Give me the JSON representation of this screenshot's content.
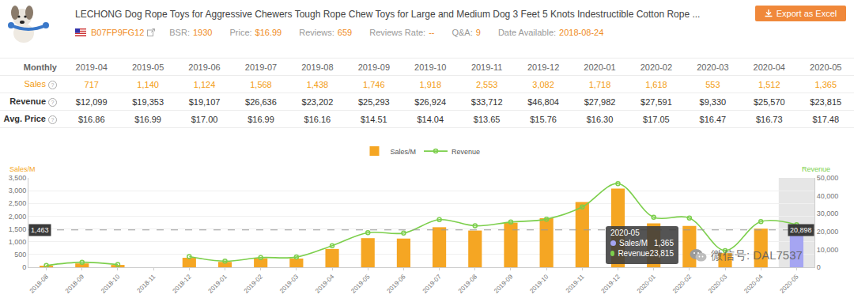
{
  "header": {
    "title": "LECHONG Dog Rope Toys for Aggressive Chewers Tough Rope Chew Toys for Large and Medium Dog 3 Feet 5 Knots Indestructible Cotton Rope ...",
    "asin": "B07FP9FG12",
    "stats": [
      {
        "label": "BSR:",
        "value": "1930"
      },
      {
        "label": "Price:",
        "value": "$16.99"
      },
      {
        "label": "Reviews:",
        "value": "659"
      },
      {
        "label": "Reviews Rate:",
        "value": "--"
      },
      {
        "label": "Q&A:",
        "value": "9"
      },
      {
        "label": "Date Available:",
        "value": "2018-08-24"
      }
    ],
    "export_button": "Export as Excel"
  },
  "table": {
    "header": "Monthly",
    "help_mark": "?",
    "columns": [
      "2019-04",
      "2019-05",
      "2019-06",
      "2019-07",
      "2019-08",
      "2019-09",
      "2019-10",
      "2019-11",
      "2019-12",
      "2020-01",
      "2020-02",
      "2020-03",
      "2020-04",
      "2020-05"
    ],
    "rows": [
      {
        "label": "Sales",
        "help": true,
        "values": [
          "717",
          "1,140",
          "1,124",
          "1,568",
          "1,438",
          "1,746",
          "1,918",
          "2,553",
          "3,082",
          "1,718",
          "1,618",
          "553",
          "1,512",
          "1,365"
        ]
      },
      {
        "label": "Revenue",
        "help": true,
        "values": [
          "$12,099",
          "$19,353",
          "$19,107",
          "$26,636",
          "$23,202",
          "$25,293",
          "$26,924",
          "$33,712",
          "$46,804",
          "$27,982",
          "$27,591",
          "$9,330",
          "$25,570",
          "$23,815"
        ]
      },
      {
        "label": "Avg. Price",
        "help": true,
        "values": [
          "$16.86",
          "$16.99",
          "$17.00",
          "$16.99",
          "$16.16",
          "$14.51",
          "$14.04",
          "$13.65",
          "$15.76",
          "$16.30",
          "$17.05",
          "$16.47",
          "$16.73",
          "$17.48"
        ]
      }
    ]
  },
  "chart_data": {
    "type": "bar",
    "categories": [
      "2018-08",
      "2018-09",
      "2018-10",
      "2018-11",
      "2018-12",
      "2019-01",
      "2019-02",
      "2019-03",
      "2019-04",
      "2019-05",
      "2019-06",
      "2019-07",
      "2019-08",
      "2019-09",
      "2019-10",
      "2019-11",
      "2019-12",
      "2020-01",
      "2020-02",
      "2020-03",
      "2020-04",
      "2020-05"
    ],
    "series": [
      {
        "name": "Sales/M",
        "type": "bar",
        "color": "#f5a623",
        "colors": [
          "#f5a623",
          "#f5a623",
          "#f5a623",
          "#f5a623",
          "#f5a623",
          "#f5a623",
          "#f5a623",
          "#f5a623",
          "#f5a623",
          "#f5a623",
          "#f5a623",
          "#f5a623",
          "#f5a623",
          "#f5a623",
          "#f5a623",
          "#f5a623",
          "#f5a623",
          "#f5a623",
          "#f5a623",
          "#f5a623",
          "#f5a623",
          "#a5a5f2"
        ],
        "values": [
          60,
          150,
          90,
          null,
          370,
          210,
          350,
          340,
          717,
          1140,
          1124,
          1568,
          1438,
          1746,
          1918,
          2553,
          3082,
          1718,
          1618,
          553,
          1512,
          1365
        ]
      },
      {
        "name": "Revenue",
        "type": "line",
        "axis": "y2",
        "color": "#7ccf4c",
        "marker": "circle-open",
        "line_style": "smooth",
        "values": [
          1000,
          2800,
          1500,
          null,
          6000,
          3400,
          5400,
          5700,
          12099,
          19353,
          19107,
          26636,
          23202,
          25293,
          26924,
          33712,
          46804,
          27982,
          27591,
          9330,
          25570,
          23815
        ]
      }
    ],
    "ylabel": "Sales/M",
    "y2label": "Revenue",
    "ylim": [
      0,
      3500
    ],
    "yticks": [
      0,
      500,
      {
        "value": 1000,
        "label": "1,000"
      },
      {
        "value": 1500,
        "label": "1,500"
      },
      {
        "value": 2000,
        "label": "2,000"
      },
      {
        "value": 2500,
        "label": "2,500"
      },
      {
        "value": 3000,
        "label": "3,000"
      },
      {
        "value": 3500,
        "label": "3,500"
      }
    ],
    "y2lim": [
      0,
      50000
    ],
    "y2ticks": [
      0,
      {
        "value": 10000,
        "label": "10,000"
      },
      {
        "value": 20000,
        "label": "20,000"
      },
      {
        "value": 30000,
        "label": "30,000"
      },
      {
        "value": 40000,
        "label": "40,000"
      },
      {
        "value": 50000,
        "label": "50,000"
      }
    ],
    "grid": true,
    "legend": "top",
    "crosshair": {
      "y": {
        "value": 1463,
        "label": "1,463"
      },
      "y2": {
        "value": 20898,
        "label": "20,898"
      }
    },
    "tooltip": {
      "title": "2020-05",
      "items": [
        {
          "name": "Sales/M",
          "value": "1,365"
        },
        {
          "name": "Revenue",
          "value": "23,815"
        }
      ]
    }
  },
  "watermark": "微信号: DAL7537"
}
